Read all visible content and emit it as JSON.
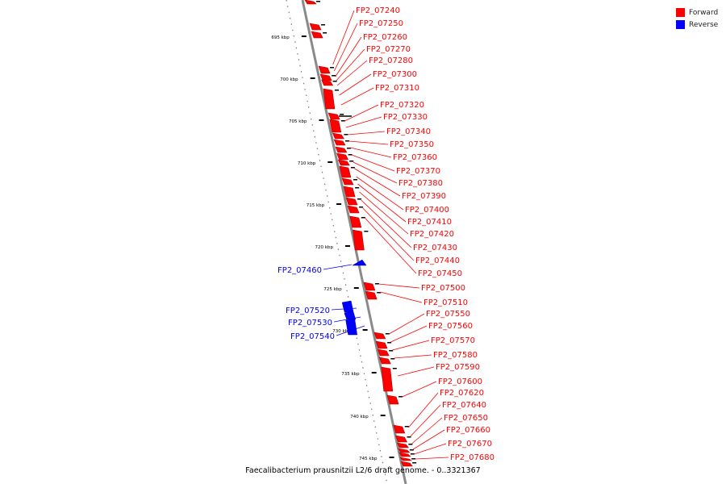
{
  "legend": [
    {
      "label": "Forward",
      "color": "#ff0000"
    },
    {
      "label": "Reverse",
      "color": "#0000ff"
    }
  ],
  "caption": "Faecalibacterium prausnitzii L2/6 draft genome. - 0..3321367",
  "ticks": [
    "695 kbp",
    "700 kbp",
    "705 kbp",
    "710 kbp",
    "715 kbp",
    "720 kbp",
    "725 kbp",
    "730 kbp",
    "735 kbp",
    "740 kbp",
    "745 kbp"
  ],
  "forward_genes": [
    "FP2_07240",
    "FP2_07250",
    "FP2_07260",
    "FP2_07270",
    "FP2_07280",
    "FP2_07300",
    "FP2_07310",
    "FP2_07320",
    "FP2_07330",
    "FP2_07340",
    "FP2_07350",
    "FP2_07360",
    "FP2_07370",
    "FP2_07380",
    "FP2_07390",
    "FP2_07400",
    "FP2_07410",
    "FP2_07420",
    "FP2_07430",
    "FP2_07440",
    "FP2_07450",
    "FP2_07500",
    "FP2_07510",
    "FP2_07550",
    "FP2_07560",
    "FP2_07570",
    "FP2_07580",
    "FP2_07590",
    "FP2_07600",
    "FP2_07620",
    "FP2_07640",
    "FP2_07650",
    "FP2_07660",
    "FP2_07670",
    "FP2_07680"
  ],
  "reverse_genes": [
    "FP2_07460",
    "FP2_07520",
    "FP2_07530",
    "FP2_07540"
  ]
}
